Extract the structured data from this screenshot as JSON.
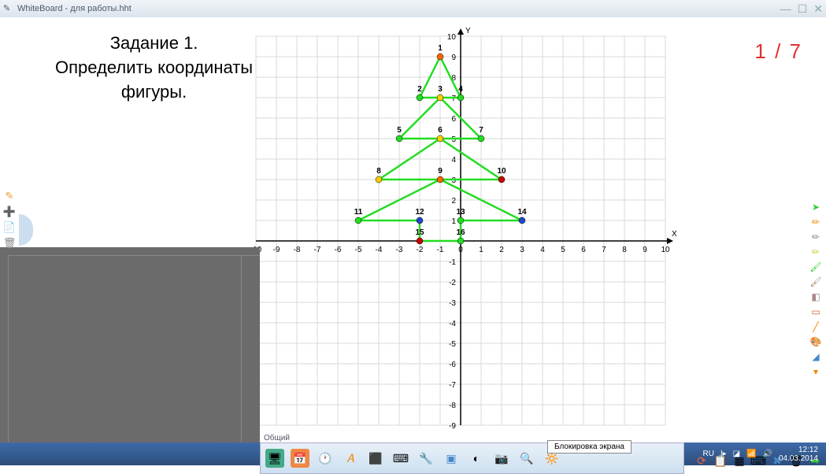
{
  "window": {
    "title": "WhiteBoard - для работы.hht"
  },
  "task": {
    "line1": "Задание 1.",
    "line2": "Определить координаты",
    "line3": "фигуры."
  },
  "page_counter": "1 / 7",
  "tooltip": "Блокировка экрана",
  "toolbar_label": "Общий",
  "system": {
    "lang": "RU",
    "time": "12:12",
    "date": "04.03.2014"
  },
  "chart": {
    "type": "coordinate-grid-with-polyline",
    "x_range": [
      -10,
      10
    ],
    "y_range": [
      -9,
      10
    ],
    "grid_color": "#d8d8d8",
    "axis_color": "#000000",
    "line_color": "#22dd22",
    "line_width": 2.5,
    "background": "#ffffff",
    "x_label": "X",
    "y_label": "Y",
    "x_ticks": [
      -10,
      -9,
      -8,
      -7,
      -6,
      -5,
      -4,
      -3,
      -2,
      -1,
      0,
      1,
      2,
      3,
      4,
      5,
      6,
      7,
      8,
      9,
      10
    ],
    "y_ticks": [
      -9,
      -8,
      -7,
      -6,
      -5,
      -4,
      -3,
      -2,
      -1,
      1,
      2,
      3,
      4,
      5,
      6,
      7,
      8,
      9,
      10
    ],
    "axis_label_fontsize": 10,
    "point_label_fontsize": 10,
    "points": [
      {
        "n": 1,
        "x": -1,
        "y": 9,
        "color": "#ff6600"
      },
      {
        "n": 2,
        "x": -2,
        "y": 7,
        "color": "#22dd22"
      },
      {
        "n": 3,
        "x": -1,
        "y": 7,
        "color": "#ffcc00"
      },
      {
        "n": 4,
        "x": 0,
        "y": 7,
        "color": "#22dd22"
      },
      {
        "n": 5,
        "x": -3,
        "y": 5,
        "color": "#22dd22"
      },
      {
        "n": 6,
        "x": -1,
        "y": 5,
        "color": "#ffcc00"
      },
      {
        "n": 7,
        "x": 1,
        "y": 5,
        "color": "#22dd22"
      },
      {
        "n": 8,
        "x": -4,
        "y": 3,
        "color": "#ffcc00"
      },
      {
        "n": 9,
        "x": -1,
        "y": 3,
        "color": "#ff6600"
      },
      {
        "n": 10,
        "x": 2,
        "y": 3,
        "color": "#cc0000"
      },
      {
        "n": 11,
        "x": -5,
        "y": 1,
        "color": "#22dd22"
      },
      {
        "n": 12,
        "x": -2,
        "y": 1,
        "color": "#2244cc"
      },
      {
        "n": 13,
        "x": 0,
        "y": 1,
        "color": "#22dd22"
      },
      {
        "n": 14,
        "x": 3,
        "y": 1,
        "color": "#2244cc"
      },
      {
        "n": 15,
        "x": -2,
        "y": 0,
        "color": "#cc0000"
      },
      {
        "n": 16,
        "x": 0,
        "y": 0,
        "color": "#22dd22"
      }
    ],
    "outline_path": [
      [
        -1,
        9
      ],
      [
        -2,
        7
      ],
      [
        -1,
        7
      ],
      [
        -3,
        5
      ],
      [
        -1,
        5
      ],
      [
        -4,
        3
      ],
      [
        -1,
        3
      ],
      [
        -5,
        1
      ],
      [
        -2,
        1
      ],
      [
        -2,
        0
      ],
      [
        0,
        0
      ],
      [
        0,
        1
      ],
      [
        3,
        1
      ],
      [
        -1,
        3
      ],
      [
        2,
        3
      ],
      [
        -1,
        5
      ],
      [
        1,
        5
      ],
      [
        -1,
        7
      ],
      [
        0,
        7
      ],
      [
        -1,
        9
      ]
    ]
  },
  "colors": {
    "titlebar_text": "#4a5a6a",
    "page_counter": "#e03030",
    "taskbar_top": "#3e6aa8",
    "taskbar_bottom": "#2d4e7c",
    "gray_panel": "#6b6b6b"
  }
}
